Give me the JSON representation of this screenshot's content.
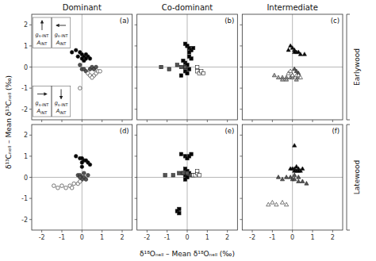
{
  "chart_data": {
    "type": "scatter",
    "xlabel": "δ¹⁸Oₙₑₗₗ – Mean δ¹⁸Oₙₑₗₗ (‰)",
    "ylabel": "δ¹³Cₙₑₗₗ – Mean δ¹³Cₙₑₗₗ (‰)",
    "xlim": [
      -2.5,
      2.5
    ],
    "ylim": [
      -2.5,
      2.5
    ],
    "xticks": [
      -2,
      -1,
      0,
      1,
      2
    ],
    "yticks": [
      -2,
      -1,
      0,
      1,
      2
    ],
    "row_labels": [
      "Earlywood",
      "Latewood"
    ],
    "panels": [
      {
        "title": "Dominant",
        "label": "(a)",
        "series": [
          {
            "marker": "circle",
            "color": "#000000",
            "x": [
              -0.5,
              -0.3,
              -0.1,
              0.0,
              0.1,
              0.2,
              0.3,
              0.4,
              0.1,
              0.2,
              0.0,
              -0.2
            ],
            "values": [
              0.7,
              0.8,
              0.7,
              0.6,
              0.5,
              0.6,
              0.5,
              0.4,
              0.3,
              0.4,
              0.4,
              0.5
            ]
          },
          {
            "marker": "circle",
            "color": "#555555",
            "x": [
              -0.1,
              0.0,
              0.1,
              0.2,
              0.4,
              0.5,
              0.6,
              0.7
            ],
            "values": [
              0.1,
              -0.1,
              -0.1,
              -0.2,
              -0.1,
              0.0,
              -0.1,
              0.0
            ]
          },
          {
            "marker": "circle",
            "color": "#ffffff",
            "x": [
              0.3,
              0.4,
              0.6,
              0.7,
              0.8,
              0.9,
              0.5,
              -0.1
            ],
            "values": [
              -0.3,
              -0.4,
              -0.4,
              -0.3,
              -0.2,
              -0.2,
              -0.5,
              -1.0
            ]
          }
        ],
        "annotations": [
          {
            "arrow": "up",
            "texts": [
              {
                "text": "g",
                "sub": "s-INT"
              },
              {
                "text": "A",
                "sub": "INT"
              }
            ]
          },
          {
            "arrow": "left",
            "texts": [
              {
                "text": "g",
                "sub": "s-INT"
              },
              {
                "text": "A",
                "sub": "INT"
              }
            ]
          },
          {
            "arrow": "right",
            "texts": [
              {
                "text": "g",
                "sub": "s-INT"
              },
              {
                "text": "A",
                "sub": "INT"
              }
            ]
          },
          {
            "arrow": "down",
            "texts": [
              {
                "text": "g",
                "sub": "s-INT"
              },
              {
                "text": "A",
                "sub": "INT"
              }
            ]
          }
        ]
      },
      {
        "title": "Co-dominant",
        "label": "(b)",
        "series": [
          {
            "marker": "square",
            "color": "#000000",
            "x": [
              -0.1,
              0.0,
              0.1,
              0.2,
              0.3,
              0.1,
              -0.1,
              0.0,
              -0.1,
              0.1,
              -0.1,
              0.0,
              0.2,
              0.1,
              -0.3,
              -0.2
            ],
            "values": [
              1.1,
              1.0,
              0.9,
              0.8,
              0.9,
              0.7,
              0.2,
              0.1,
              0.0,
              -0.1,
              -0.2,
              -0.3,
              0.4,
              0.5,
              -0.4,
              0.3
            ]
          },
          {
            "marker": "square",
            "color": "#555555",
            "x": [
              -1.3,
              -0.9,
              -0.5,
              -0.3,
              -0.1
            ],
            "values": [
              0.0,
              -0.1,
              0.1,
              0.0,
              0.0
            ]
          },
          {
            "marker": "square",
            "color": "#ffffff",
            "x": [
              0.5,
              0.6,
              0.7,
              0.5,
              0.8
            ],
            "values": [
              -0.2,
              -0.3,
              -0.2,
              0.0,
              -0.3
            ]
          }
        ]
      },
      {
        "title": "Intermediate",
        "label": "(c)",
        "series": [
          {
            "marker": "triangle",
            "color": "#000000",
            "x": [
              -0.2,
              -0.1,
              0.0,
              0.1,
              0.2,
              0.3,
              0.4,
              0.6,
              0.1
            ],
            "values": [
              0.8,
              1.0,
              0.9,
              0.8,
              0.7,
              0.7,
              0.6,
              0.6,
              0.7
            ]
          },
          {
            "marker": "triangle",
            "color": "#555555",
            "x": [
              0.1,
              0.2,
              0.3
            ],
            "values": [
              -0.1,
              -0.2,
              -0.3
            ]
          },
          {
            "marker": "triangle",
            "color": "#aaaaaa",
            "x": [
              -0.9,
              -0.7,
              -0.5,
              -0.3,
              -0.1,
              0.0,
              0.2,
              0.3,
              -0.5,
              -0.3,
              0.0
            ],
            "values": [
              -0.4,
              -0.5,
              -0.5,
              -0.5,
              -0.5,
              -0.5,
              -0.6,
              -0.5,
              -0.6,
              -0.6,
              -0.4
            ]
          },
          {
            "marker": "triangle",
            "color": "#ffffff",
            "x": [
              -0.2,
              -0.1,
              0.0,
              0.2,
              0.3,
              0.4
            ],
            "values": [
              -0.3,
              -0.2,
              -0.4,
              -0.4,
              -0.4,
              -0.5
            ]
          }
        ]
      },
      {
        "label": "(d)",
        "series": [
          {
            "marker": "circle",
            "color": "#000000",
            "x": [
              -0.3,
              -0.1,
              0.0,
              0.1,
              0.0,
              0.2,
              0.3,
              0.4,
              0.0
            ],
            "values": [
              1.0,
              0.9,
              0.9,
              0.8,
              0.7,
              0.8,
              0.7,
              0.6,
              0.5
            ]
          },
          {
            "marker": "circle",
            "color": "#555555",
            "x": [
              -0.2,
              -0.1,
              0.0,
              0.1,
              0.2,
              0.0,
              -0.1,
              0.3,
              0.1
            ],
            "values": [
              0.1,
              0.1,
              0.0,
              0.0,
              -0.1,
              -0.1,
              0.0,
              0.1,
              0.2
            ]
          },
          {
            "marker": "circle",
            "color": "#ffffff",
            "x": [
              -1.4,
              -1.2,
              -1.0,
              -0.8,
              -0.6,
              -0.5,
              -0.4,
              -0.2,
              -0.1
            ],
            "values": [
              -0.4,
              -0.5,
              -0.4,
              -0.5,
              -0.4,
              -0.5,
              -0.3,
              -0.3,
              -0.2
            ]
          }
        ]
      },
      {
        "label": "(e)",
        "series": [
          {
            "marker": "square",
            "color": "#000000",
            "x": [
              -0.3,
              -0.1,
              0.0,
              0.1,
              0.2,
              -0.1,
              0.0,
              -0.2,
              0.1,
              -0.1,
              0.0,
              -0.1,
              -0.4,
              -0.5,
              -0.4
            ],
            "values": [
              1.1,
              1.0,
              0.9,
              1.0,
              1.1,
              0.4,
              0.3,
              0.2,
              0.2,
              0.1,
              0.0,
              -0.1,
              -1.5,
              -1.6,
              -1.7
            ]
          },
          {
            "marker": "square",
            "color": "#555555",
            "x": [
              -1.1,
              -0.7,
              -0.4,
              -0.2,
              0.0,
              0.2
            ],
            "values": [
              0.1,
              0.1,
              0.2,
              0.2,
              0.2,
              0.1
            ]
          },
          {
            "marker": "square",
            "color": "#ffffff",
            "x": [
              0.3,
              0.4,
              0.5,
              0.6,
              0.5
            ],
            "values": [
              0.1,
              0.1,
              0.2,
              0.1,
              0.3
            ]
          }
        ]
      },
      {
        "label": "(f)",
        "series": [
          {
            "marker": "triangle",
            "color": "#000000",
            "x": [
              0.1,
              0.0,
              0.1,
              0.2,
              0.3,
              0.4,
              0.5,
              0.1,
              0.2,
              0.3,
              -0.1
            ],
            "values": [
              1.5,
              0.4,
              0.4,
              0.5,
              0.4,
              0.3,
              0.4,
              0.3,
              0.3,
              0.3,
              0.4
            ]
          },
          {
            "marker": "triangle",
            "color": "#555555",
            "x": [
              -0.7,
              -0.5,
              -0.3,
              -0.1,
              0.0,
              0.1,
              0.3,
              0.5,
              0.7,
              0.3,
              0.1
            ],
            "values": [
              0.0,
              -0.1,
              0.0,
              0.0,
              -0.1,
              -0.1,
              -0.2,
              -0.2,
              -0.3,
              0.0,
              0.1
            ]
          },
          {
            "marker": "triangle",
            "color": "#ffffff",
            "x": [
              -1.2,
              -1.0,
              -0.8,
              -0.5,
              -0.3
            ],
            "values": [
              -1.3,
              -1.2,
              -1.3,
              -1.2,
              -1.3
            ]
          }
        ]
      }
    ]
  }
}
